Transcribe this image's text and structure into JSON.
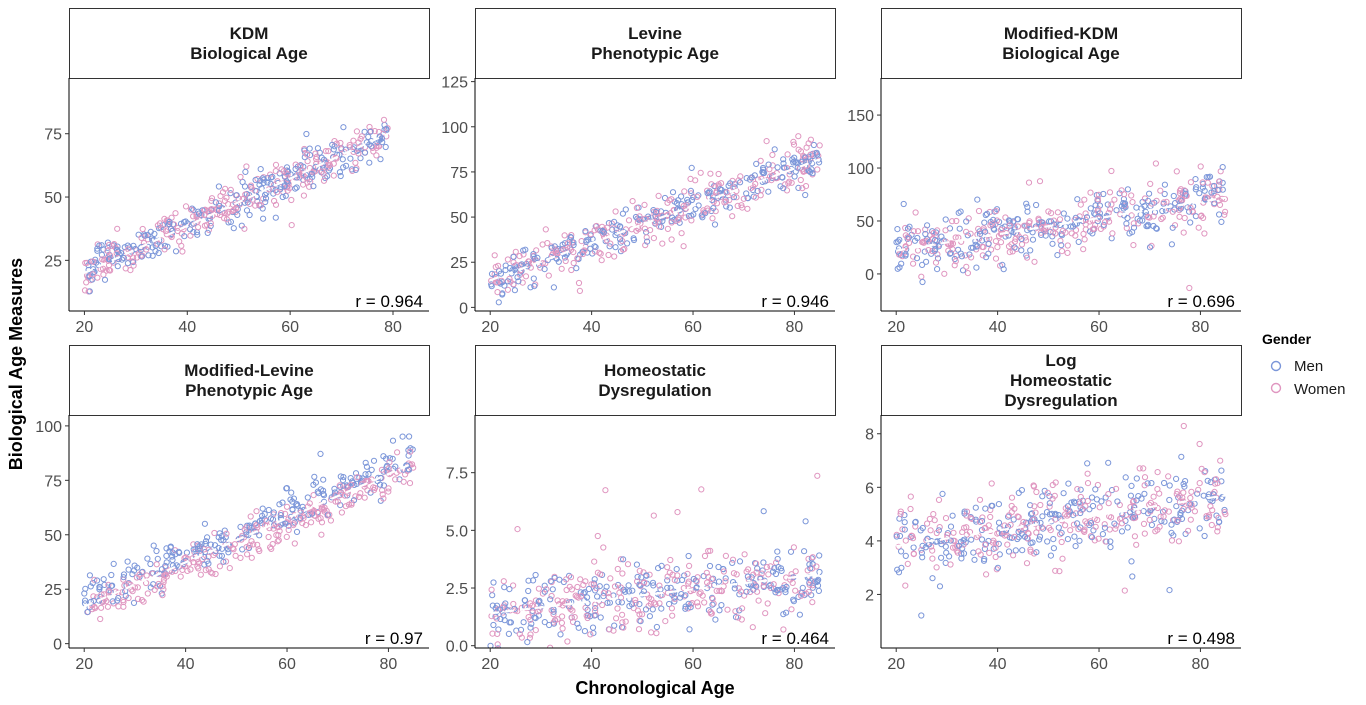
{
  "chart_data": {
    "type": "scatter",
    "xlabel": "Chronological Age",
    "ylabel": "Biological Age Measures",
    "legend": {
      "title": "Gender",
      "placement": "right",
      "entries": [
        {
          "name": "Men",
          "color": "#7b96d9"
        },
        {
          "name": "Women",
          "color": "#e096c0"
        }
      ]
    },
    "trend_line": {
      "color": "#ffffff",
      "style": "dashed"
    },
    "panels": [
      {
        "title": [
          "KDM",
          "Biological Age"
        ],
        "r_label": "r = 0.964",
        "xlim": [
          17,
          87
        ],
        "xticks": [
          20,
          40,
          60,
          80
        ],
        "x_range": [
          20,
          79
        ],
        "ylim": [
          5,
          97
        ],
        "yticks": [
          25,
          50,
          75
        ],
        "trend": {
          "x": [
            20,
            79
          ],
          "y": [
            20,
            75
          ]
        },
        "spread": 7,
        "outlier_spread": 3
      },
      {
        "title": [
          "Levine",
          "Phenotypic Age"
        ],
        "r_label": "r = 0.946",
        "xlim": [
          17,
          88
        ],
        "xticks": [
          20,
          40,
          60,
          80
        ],
        "x_range": [
          20,
          85
        ],
        "ylim": [
          -2,
          127
        ],
        "yticks": [
          0,
          25,
          50,
          75,
          100,
          125
        ],
        "trend": {
          "x": [
            20,
            85
          ],
          "y": [
            15,
            82
          ]
        },
        "spread": 11,
        "outlier_spread": 6
      },
      {
        "title": [
          "Modified-KDM",
          "Biological Age"
        ],
        "r_label": "r = 0.696",
        "xlim": [
          17,
          88
        ],
        "xticks": [
          20,
          40,
          60,
          80
        ],
        "x_range": [
          20,
          85
        ],
        "ylim": [
          -35,
          185
        ],
        "yticks": [
          0,
          50,
          100,
          150
        ],
        "trend": {
          "x": [
            20,
            85
          ],
          "y": [
            22,
            72
          ]
        },
        "spread": 24,
        "outlier_spread": 12
      },
      {
        "title": [
          "Modified-Levine",
          "Phenotypic Age"
        ],
        "r_label": "r = 0.97",
        "xlim": [
          17,
          88
        ],
        "xticks": [
          20,
          40,
          60,
          80
        ],
        "x_range": [
          20,
          85
        ],
        "ylim": [
          -2,
          105
        ],
        "yticks": [
          0,
          25,
          50,
          75,
          100
        ],
        "trend": {
          "x": [
            20,
            85
          ],
          "y": [
            17,
            83
          ]
        },
        "spread": 8,
        "outlier_spread": 4
      },
      {
        "title": [
          "Homeostatic",
          "Dysregulation"
        ],
        "r_label": "r = 0.464",
        "xlim": [
          17,
          88
        ],
        "xticks": [
          20,
          40,
          60,
          80
        ],
        "x_range": [
          20,
          85
        ],
        "ylim": [
          -0.1,
          10
        ],
        "yticks": [
          "0.0",
          "2.5",
          "5.0",
          "7.5"
        ],
        "trend": {
          "x": [
            20,
            85
          ],
          "y": [
            1.4,
            3.1
          ]
        },
        "spread": 1.3,
        "outlier_spread": 1.6
      },
      {
        "title": [
          "Log",
          "Homeostatic",
          "Dysregulation"
        ],
        "r_label": "r = 0.498",
        "xlim": [
          17,
          88
        ],
        "xticks": [
          20,
          40,
          60,
          80
        ],
        "x_range": [
          20,
          85
        ],
        "ylim": [
          0,
          8.7
        ],
        "yticks": [
          2,
          4,
          6,
          8
        ],
        "trend": {
          "x": [
            20,
            85
          ],
          "y": [
            3.8,
            5.7
          ]
        },
        "spread": 1.2,
        "outlier_spread": 0.8
      }
    ]
  }
}
